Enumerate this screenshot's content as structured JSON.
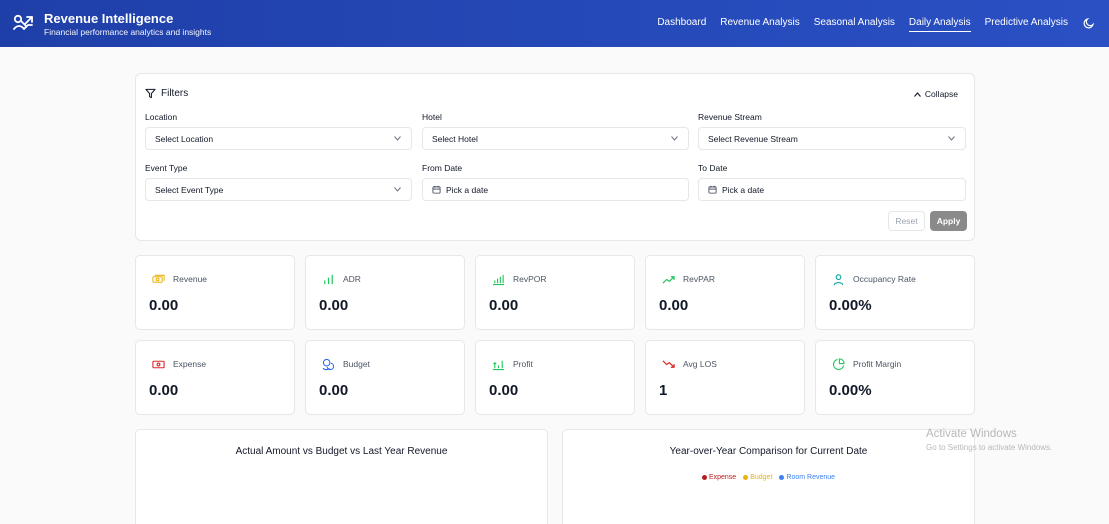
{
  "header": {
    "title": "Revenue Intelligence",
    "subtitle": "Financial performance analytics and insights",
    "nav": [
      {
        "label": "Dashboard",
        "active": false
      },
      {
        "label": "Revenue Analysis",
        "active": false
      },
      {
        "label": "Seasonal Analysis",
        "active": false
      },
      {
        "label": "Daily Analysis",
        "active": true
      },
      {
        "label": "Predictive Analysis",
        "active": false
      }
    ],
    "theme_icon": "moon-icon"
  },
  "filters": {
    "title": "Filters",
    "collapse_label": "Collapse",
    "location": {
      "label": "Location",
      "value": "Select Location"
    },
    "hotel": {
      "label": "Hotel",
      "value": "Select Hotel"
    },
    "revenue_stream": {
      "label": "Revenue Stream",
      "value": "Select Revenue Stream"
    },
    "event_type": {
      "label": "Event Type",
      "value": "Select Event Type"
    },
    "from_date": {
      "label": "From Date",
      "value": "Pick a date"
    },
    "to_date": {
      "label": "To Date",
      "value": "Pick a date"
    },
    "reset_label": "Reset",
    "apply_label": "Apply"
  },
  "metrics": [
    {
      "label": "Revenue",
      "value": "0.00",
      "icon": "money-icon",
      "color": "#eab308"
    },
    {
      "label": "ADR",
      "value": "0.00",
      "icon": "bar-chart-icon",
      "color": "#22c55e"
    },
    {
      "label": "RevPOR",
      "value": "0.00",
      "icon": "bar-chart-icon",
      "color": "#22c55e"
    },
    {
      "label": "RevPAR",
      "value": "0.00",
      "icon": "trending-up-icon",
      "color": "#22c55e"
    },
    {
      "label": "Occupancy Rate",
      "value": "0.00%",
      "icon": "person-icon",
      "color": "#0ea5a4"
    },
    {
      "label": "Expense",
      "value": "0.00",
      "icon": "banknote-icon",
      "color": "#dc2626"
    },
    {
      "label": "Budget",
      "value": "0.00",
      "icon": "coins-icon",
      "color": "#2563eb"
    },
    {
      "label": "Profit",
      "value": "0.00",
      "icon": "growth-icon",
      "color": "#22c55e"
    },
    {
      "label": "Avg LOS",
      "value": "1",
      "icon": "trending-down-icon",
      "color": "#dc2626"
    },
    {
      "label": "Profit Margin",
      "value": "0.00%",
      "icon": "pie-icon",
      "color": "#22c55e"
    }
  ],
  "panels": {
    "left_title": "Actual Amount vs Budget vs Last Year Revenue",
    "right_title": "Year-over-Year Comparison for Current Date",
    "legend": [
      {
        "label": "Expense",
        "color": "#b91c1c"
      },
      {
        "label": "Budget",
        "color": "#eab308"
      },
      {
        "label": "Room Revenue",
        "color": "#3b82f6"
      }
    ]
  },
  "watermark": {
    "title": "Activate Windows",
    "subtitle": "Go to Settings to activate Windows."
  }
}
